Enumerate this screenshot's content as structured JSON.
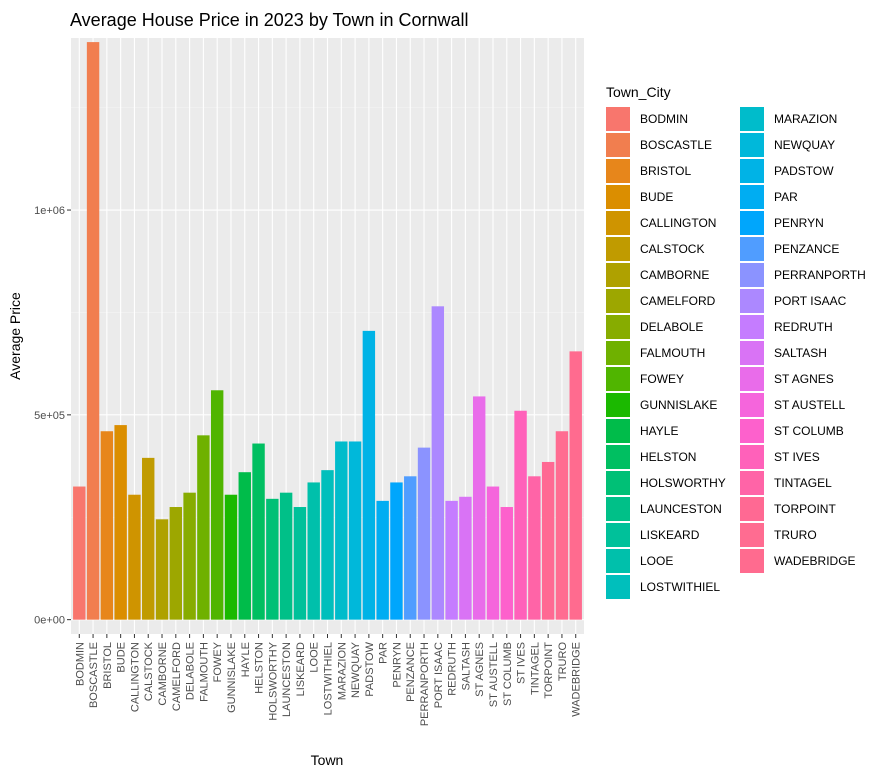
{
  "chart_data": {
    "type": "bar",
    "title": "Average House Price in 2023 by Town in Cornwall",
    "xlabel": "Town",
    "ylabel": "Average Price",
    "ylim": [
      -35000,
      1420000
    ],
    "y_ticks": [
      0,
      500000,
      1000000
    ],
    "y_tick_labels": [
      "0e+00",
      "5e+05",
      "1e+06"
    ],
    "grid": true,
    "legend_title": "Town_City",
    "legend_position": "right",
    "categories": [
      "BODMIN",
      "BOSCASTLE",
      "BRISTOL",
      "BUDE",
      "CALLINGTON",
      "CALSTOCK",
      "CAMBORNE",
      "CAMELFORD",
      "DELABOLE",
      "FALMOUTH",
      "FOWEY",
      "GUNNISLAKE",
      "HAYLE",
      "HELSTON",
      "HOLSWORTHY",
      "LAUNCESTON",
      "LISKEARD",
      "LOOE",
      "LOSTWITHIEL",
      "MARAZION",
      "NEWQUAY",
      "PADSTOW",
      "PAR",
      "PENRYN",
      "PENZANCE",
      "PERRANPORTH",
      "PORT ISAAC",
      "REDRUTH",
      "SALTASH",
      "ST AGNES",
      "ST AUSTELL",
      "ST COLUMB",
      "ST IVES",
      "TINTAGEL",
      "TORPOINT",
      "TRURO",
      "WADEBRIDGE"
    ],
    "values": [
      325000,
      1410000,
      460000,
      475000,
      305000,
      395000,
      245000,
      275000,
      310000,
      450000,
      560000,
      305000,
      360000,
      430000,
      295000,
      310000,
      275000,
      335000,
      365000,
      435000,
      435000,
      705000,
      290000,
      335000,
      350000,
      420000,
      765000,
      290000,
      300000,
      545000,
      325000,
      275000,
      510000,
      350000,
      385000,
      460000,
      655000
    ],
    "colors": [
      "#F8766D",
      "#F17E4F",
      "#E7861B",
      "#DB8E00",
      "#CF9400",
      "#C09B00",
      "#AFA100",
      "#9DA700",
      "#87AC00",
      "#6FB100",
      "#50B500",
      "#1BB900",
      "#00BC4A",
      "#00BF61",
      "#00C076",
      "#00C088",
      "#00C19A",
      "#00C0AB",
      "#00BFBC",
      "#00BCCB",
      "#00B8DA",
      "#00B3E6",
      "#00ADF2",
      "#00A6FC",
      "#509DFF",
      "#8B93FF",
      "#AC88FF",
      "#C57CFF",
      "#D973F5",
      "#E96CEA",
      "#F565DC",
      "#FD61CC",
      "#FF61BA",
      "#FF64A7",
      "#FF6993",
      "#FF6C91",
      "#FF6B8F"
    ]
  }
}
